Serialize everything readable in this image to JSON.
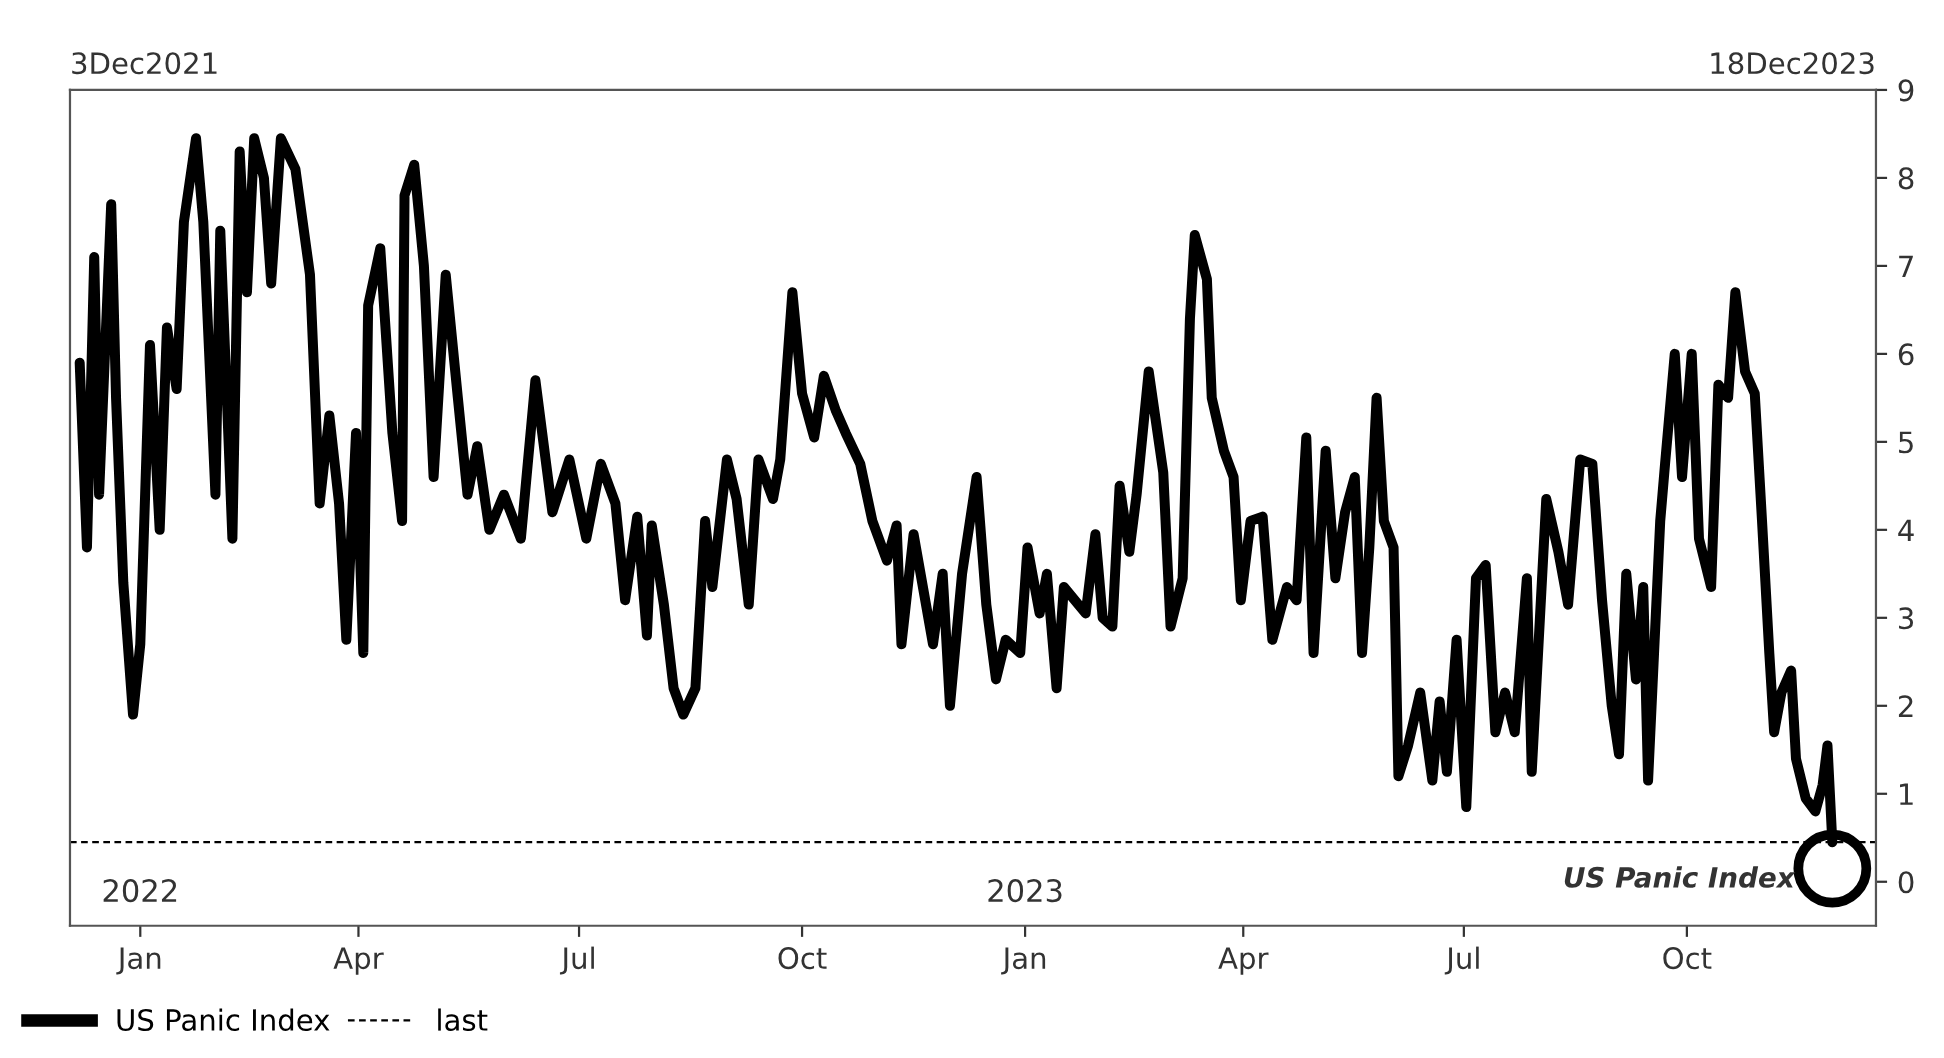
{
  "chart_data": {
    "type": "line",
    "x": [
      "2021-12-07",
      "2021-12-10",
      "2021-12-13",
      "2021-12-15",
      "2021-12-20",
      "2021-12-22",
      "2021-12-25",
      "2021-12-29",
      "2022-01-01",
      "2022-01-05",
      "2022-01-09",
      "2022-01-12",
      "2022-01-16",
      "2022-01-19",
      "2022-01-24",
      "2022-01-27",
      "2022-02-01",
      "2022-02-03",
      "2022-02-08",
      "2022-02-11",
      "2022-02-14",
      "2022-02-17",
      "2022-02-21",
      "2022-02-24",
      "2022-02-28",
      "2022-03-06",
      "2022-03-12",
      "2022-03-16",
      "2022-03-20",
      "2022-03-24",
      "2022-03-27",
      "2022-03-31",
      "2022-04-03",
      "2022-04-05",
      "2022-04-10",
      "2022-04-15",
      "2022-04-19",
      "2022-04-20",
      "2022-04-24",
      "2022-04-28",
      "2022-05-02",
      "2022-05-07",
      "2022-05-12",
      "2022-05-16",
      "2022-05-20",
      "2022-05-25",
      "2022-05-31",
      "2022-06-07",
      "2022-06-13",
      "2022-06-20",
      "2022-06-27",
      "2022-07-04",
      "2022-07-10",
      "2022-07-16",
      "2022-07-20",
      "2022-07-25",
      "2022-07-29",
      "2022-07-31",
      "2022-08-05",
      "2022-08-09",
      "2022-08-13",
      "2022-08-18",
      "2022-08-22",
      "2022-08-25",
      "2022-08-31",
      "2022-09-04",
      "2022-09-09",
      "2022-09-13",
      "2022-09-19",
      "2022-09-22",
      "2022-09-27",
      "2022-10-01",
      "2022-10-06",
      "2022-10-10",
      "2022-10-15",
      "2022-10-19",
      "2022-10-25",
      "2022-10-30",
      "2022-11-05",
      "2022-11-09",
      "2022-11-11",
      "2022-11-16",
      "2022-11-24",
      "2022-11-28",
      "2022-12-01",
      "2022-12-06",
      "2022-12-12",
      "2022-12-16",
      "2022-12-20",
      "2022-12-24",
      "2022-12-30",
      "2023-01-02",
      "2023-01-07",
      "2023-01-10",
      "2023-01-14",
      "2023-01-17",
      "2023-01-26",
      "2023-01-30",
      "2023-02-02",
      "2023-02-06",
      "2023-02-09",
      "2023-02-13",
      "2023-02-16",
      "2023-02-21",
      "2023-02-27",
      "2023-03-02",
      "2023-03-07",
      "2023-03-10",
      "2023-03-12",
      "2023-03-17",
      "2023-03-19",
      "2023-03-24",
      "2023-03-28",
      "2023-03-31",
      "2023-04-04",
      "2023-04-09",
      "2023-04-13",
      "2023-04-19",
      "2023-04-23",
      "2023-04-27",
      "2023-04-30",
      "2023-05-05",
      "2023-05-09",
      "2023-05-13",
      "2023-05-17",
      "2023-05-20",
      "2023-05-23",
      "2023-05-26",
      "2023-05-29",
      "2023-06-02",
      "2023-06-04",
      "2023-06-08",
      "2023-06-13",
      "2023-06-18",
      "2023-06-21",
      "2023-06-24",
      "2023-06-28",
      "2023-07-02",
      "2023-07-06",
      "2023-07-10",
      "2023-07-14",
      "2023-07-18",
      "2023-07-22",
      "2023-07-27",
      "2023-07-29",
      "2023-08-04",
      "2023-08-09",
      "2023-08-13",
      "2023-08-18",
      "2023-08-23",
      "2023-08-27",
      "2023-08-31",
      "2023-09-03",
      "2023-09-06",
      "2023-09-10",
      "2023-09-13",
      "2023-09-15",
      "2023-09-20",
      "2023-09-22",
      "2023-09-26",
      "2023-09-29",
      "2023-10-03",
      "2023-10-06",
      "2023-10-11",
      "2023-10-14",
      "2023-10-18",
      "2023-10-21",
      "2023-10-25",
      "2023-10-29",
      "2023-11-01",
      "2023-11-04",
      "2023-11-06",
      "2023-11-09",
      "2023-11-13",
      "2023-11-15",
      "2023-11-19",
      "2023-11-23",
      "2023-11-26",
      "2023-11-28",
      "2023-11-30"
    ],
    "series": [
      {
        "name": "US Panic Index",
        "color": "#000000",
        "values": [
          5.9,
          3.8,
          7.1,
          4.4,
          7.7,
          5.5,
          3.4,
          1.9,
          2.7,
          6.1,
          4.0,
          6.3,
          5.6,
          7.5,
          8.45,
          7.5,
          4.4,
          7.4,
          3.9,
          8.3,
          6.7,
          8.45,
          8.0,
          6.8,
          8.45,
          8.1,
          6.9,
          4.3,
          5.3,
          4.3,
          2.75,
          5.1,
          2.6,
          6.55,
          7.2,
          5.1,
          4.1,
          7.8,
          8.15,
          7.0,
          4.6,
          6.9,
          5.5,
          4.4,
          4.95,
          4.0,
          4.4,
          3.9,
          5.7,
          4.2,
          4.8,
          3.9,
          4.75,
          4.3,
          3.2,
          4.15,
          2.8,
          4.05,
          3.15,
          2.2,
          1.9,
          2.2,
          4.1,
          3.35,
          4.8,
          4.35,
          3.15,
          4.8,
          4.35,
          4.8,
          6.7,
          5.55,
          5.05,
          5.75,
          5.35,
          5.1,
          4.75,
          4.1,
          3.65,
          4.05,
          2.7,
          3.95,
          2.7,
          3.5,
          2.0,
          3.5,
          4.6,
          3.15,
          2.3,
          2.75,
          2.6,
          3.8,
          3.05,
          3.5,
          2.2,
          3.35,
          3.05,
          3.95,
          3.0,
          2.9,
          4.5,
          3.75,
          4.4,
          5.8,
          4.65,
          2.9,
          3.45,
          6.4,
          7.35,
          6.85,
          5.5,
          4.9,
          4.6,
          3.2,
          4.1,
          4.15,
          2.75,
          3.35,
          3.2,
          5.05,
          2.6,
          4.9,
          3.45,
          4.2,
          4.6,
          2.6,
          3.8,
          5.5,
          4.1,
          3.8,
          1.2,
          1.55,
          2.15,
          1.15,
          2.05,
          1.25,
          2.75,
          0.85,
          3.45,
          3.6,
          1.7,
          2.15,
          1.7,
          3.45,
          1.25,
          4.35,
          3.75,
          3.15,
          4.8,
          4.75,
          3.2,
          2.0,
          1.45,
          3.5,
          2.3,
          3.35,
          1.15,
          4.1,
          4.75,
          6.0,
          4.6,
          6.0,
          3.9,
          3.35,
          5.65,
          5.5,
          6.7,
          5.8,
          5.55,
          4.1,
          2.6,
          1.7,
          2.15,
          2.4,
          1.4,
          0.95,
          0.8,
          1.1,
          1.55,
          0.45
        ]
      }
    ],
    "xlim": [
      "2021-12-03",
      "2023-12-18"
    ],
    "xticks": [
      {
        "value": "2022-01-01",
        "label": "Jan"
      },
      {
        "value": "2022-04-01",
        "label": "Apr"
      },
      {
        "value": "2022-07-01",
        "label": "Jul"
      },
      {
        "value": "2022-10-01",
        "label": "Oct"
      },
      {
        "value": "2023-01-01",
        "label": "Jan"
      },
      {
        "value": "2023-04-01",
        "label": "Apr"
      },
      {
        "value": "2023-07-01",
        "label": "Jul"
      },
      {
        "value": "2023-10-01",
        "label": "Oct"
      }
    ],
    "ylim": [
      -0.5,
      9
    ],
    "yticks": [
      0,
      1,
      2,
      3,
      4,
      5,
      6,
      7,
      8,
      9
    ],
    "ref_lines": [
      {
        "axis": "y",
        "value": 0.45,
        "label": "last",
        "color": "#000000",
        "line_style": "dashed"
      }
    ],
    "x2lim": [
      "2021-12-03",
      "2023-12-18"
    ],
    "x2ticks": [
      {
        "value": "2022-01-01",
        "label": "2022"
      },
      {
        "value": "2023-01-01",
        "label": "2023"
      }
    ],
    "annotations": [
      "3Dec2021",
      "18Dec2023",
      "US Panic Index"
    ],
    "legend": "bottom",
    "grid": false,
    "line_style": "solid",
    "marker": "none"
  }
}
